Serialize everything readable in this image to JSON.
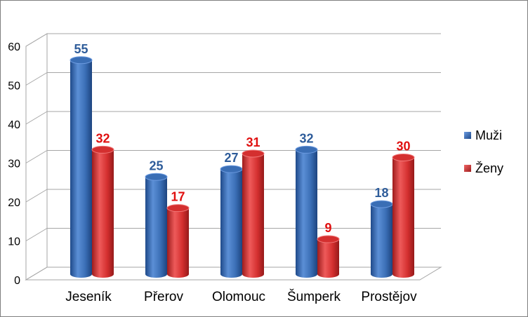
{
  "chart_data": {
    "type": "bar",
    "categories": [
      "Jeseník",
      "Přerov",
      "Olomouc",
      "Šumperk",
      "Prostějov"
    ],
    "series": [
      {
        "name": "Muži",
        "values": [
          55,
          25,
          27,
          32,
          18
        ],
        "color": "#3a6eb5",
        "label_color": "#2e5c9a"
      },
      {
        "name": "Ženy",
        "values": [
          32,
          17,
          31,
          9,
          30
        ],
        "color": "#d42f2f",
        "label_color": "#e01010"
      }
    ],
    "ylim": [
      0,
      60
    ],
    "yticks": [
      0,
      10,
      20,
      30,
      40,
      50,
      60
    ],
    "grid": true,
    "legend": "right",
    "style": "3d-cylinder"
  }
}
